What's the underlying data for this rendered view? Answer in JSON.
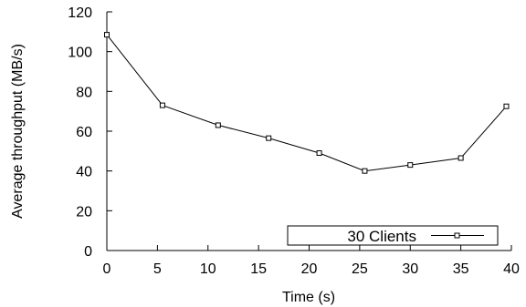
{
  "chart_data": {
    "type": "line",
    "xlabel": "Time (s)",
    "ylabel": "Average throughput (MB/s)",
    "xlim": [
      0,
      40
    ],
    "ylim": [
      0,
      120
    ],
    "xticks": [
      0,
      5,
      10,
      15,
      20,
      25,
      30,
      35,
      40
    ],
    "yticks": [
      0,
      20,
      40,
      60,
      80,
      100,
      120
    ],
    "grid": false,
    "legend_position": "bottom-right",
    "series": [
      {
        "name": "30 Clients",
        "marker": "square",
        "color": "#000000",
        "x": [
          0,
          5.5,
          11,
          16,
          21,
          25.5,
          30,
          35,
          39.5
        ],
        "y": [
          108.5,
          73,
          63,
          56.5,
          49,
          40,
          43,
          46.5,
          72.5
        ]
      }
    ]
  }
}
